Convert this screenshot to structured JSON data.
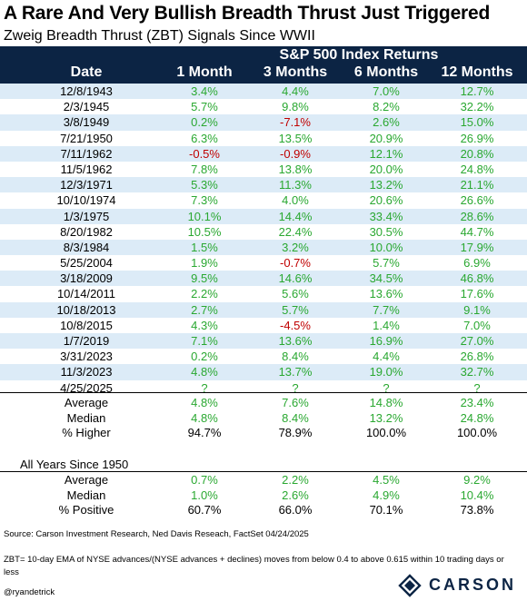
{
  "title": "A Rare And Very Bullish Breadth Thrust Just Triggered",
  "subtitle": "Zweig Breadth Thrust (ZBT) Signals Since WWII",
  "chart_data": {
    "type": "table",
    "group_header": "S&P 500 Index Returns",
    "columns": [
      "Date",
      "1 Month",
      "3 Months",
      "6 Months",
      "12 Months"
    ],
    "rows": [
      [
        "12/8/1943",
        "3.4%",
        "4.4%",
        "7.0%",
        "12.7%"
      ],
      [
        "2/3/1945",
        "5.7%",
        "9.8%",
        "8.2%",
        "32.2%"
      ],
      [
        "3/8/1949",
        "0.2%",
        "-7.1%",
        "2.6%",
        "15.0%"
      ],
      [
        "7/21/1950",
        "6.3%",
        "13.5%",
        "20.9%",
        "26.9%"
      ],
      [
        "7/11/1962",
        "-0.5%",
        "-0.9%",
        "12.1%",
        "20.8%"
      ],
      [
        "11/5/1962",
        "7.8%",
        "13.8%",
        "20.0%",
        "24.8%"
      ],
      [
        "12/3/1971",
        "5.3%",
        "11.3%",
        "13.2%",
        "21.1%"
      ],
      [
        "10/10/1974",
        "7.3%",
        "4.0%",
        "20.6%",
        "26.6%"
      ],
      [
        "1/3/1975",
        "10.1%",
        "14.4%",
        "33.4%",
        "28.6%"
      ],
      [
        "8/20/1982",
        "10.5%",
        "22.4%",
        "30.5%",
        "44.7%"
      ],
      [
        "8/3/1984",
        "1.5%",
        "3.2%",
        "10.0%",
        "17.9%"
      ],
      [
        "5/25/2004",
        "1.9%",
        "-0.7%",
        "5.7%",
        "6.9%"
      ],
      [
        "3/18/2009",
        "9.5%",
        "14.6%",
        "34.5%",
        "46.8%"
      ],
      [
        "10/14/2011",
        "2.2%",
        "5.6%",
        "13.6%",
        "17.6%"
      ],
      [
        "10/18/2013",
        "2.7%",
        "5.7%",
        "7.7%",
        "9.1%"
      ],
      [
        "10/8/2015",
        "4.3%",
        "-4.5%",
        "1.4%",
        "7.0%"
      ],
      [
        "1/7/2019",
        "7.1%",
        "13.6%",
        "16.9%",
        "27.0%"
      ],
      [
        "3/31/2023",
        "0.2%",
        "8.4%",
        "4.4%",
        "26.8%"
      ],
      [
        "11/3/2023",
        "4.8%",
        "13.7%",
        "19.0%",
        "32.7%"
      ],
      [
        "4/25/2025",
        "?",
        "?",
        "?",
        "?"
      ]
    ],
    "summary": [
      [
        "Average",
        "4.8%",
        "7.6%",
        "14.8%",
        "23.4%"
      ],
      [
        "Median",
        "4.8%",
        "8.4%",
        "13.2%",
        "24.8%"
      ],
      [
        "% Higher",
        "94.7%",
        "78.9%",
        "100.0%",
        "100.0%"
      ]
    ],
    "section2_label": "All Years Since 1950",
    "section2": [
      [
        "Average",
        "0.7%",
        "2.2%",
        "4.5%",
        "9.2%"
      ],
      [
        "Median",
        "1.0%",
        "2.6%",
        "4.9%",
        "10.4%"
      ],
      [
        "% Positive",
        "60.7%",
        "66.0%",
        "70.1%",
        "73.8%"
      ]
    ],
    "positive_color": "#2aa831",
    "negative_color": "#c00000",
    "header_color": "#0c2444",
    "stripe_color": "#dcebf7"
  },
  "source": "Source: Carson Investment Research, Ned Davis Reseach, FactSet 04/24/2025",
  "note": "ZBT= 10-day EMA of NYSE advances/(NYSE advances + declines) moves from below 0.4 to above 0.615 within 10 trading days or less",
  "handle": "@ryandetrick",
  "logo_text": "CARSON"
}
